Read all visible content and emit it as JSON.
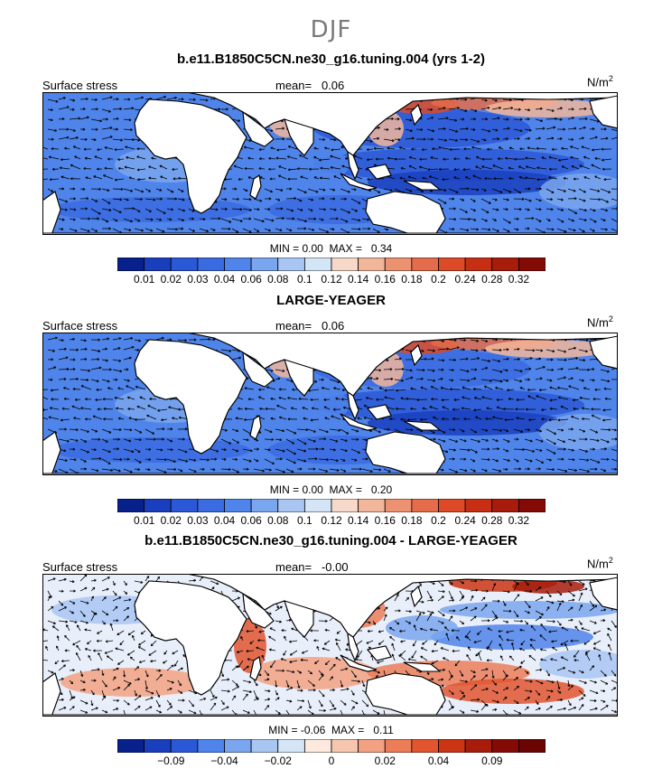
{
  "header": {
    "season": "DJF"
  },
  "panels": [
    {
      "title": "b.e11.B1850C5CN.ne30_g16.tuning.004 (yrs 1-2)",
      "variable": "Surface stress",
      "mean_label": "mean=",
      "mean_value": "0.06",
      "units": "N/m",
      "units_exp": "2",
      "min_label": "MIN =",
      "min_value": "0.00",
      "max_label": "MAX =",
      "max_value": "0.34",
      "palette": "abs",
      "colorbar_labels": [
        "0.01",
        "0.02",
        "0.03",
        "0.04",
        "0.06",
        "0.08",
        "0.1",
        "0.12",
        "0.14",
        "0.16",
        "0.18",
        "0.2",
        "0.24",
        "0.28",
        "0.32"
      ]
    },
    {
      "title": "LARGE-YEAGER",
      "variable": "Surface stress",
      "mean_label": "mean=",
      "mean_value": "0.06",
      "units": "N/m",
      "units_exp": "2",
      "min_label": "MIN =",
      "min_value": "0.00",
      "max_label": "MAX =",
      "max_value": "0.20",
      "palette": "abs",
      "colorbar_labels": [
        "0.01",
        "0.02",
        "0.03",
        "0.04",
        "0.06",
        "0.08",
        "0.1",
        "0.12",
        "0.14",
        "0.16",
        "0.18",
        "0.2",
        "0.24",
        "0.28",
        "0.32"
      ]
    },
    {
      "title": "b.e11.B1850C5CN.ne30_g16.tuning.004 - LARGE-YEAGER",
      "variable": "Surface stress",
      "mean_label": "mean=",
      "mean_value": "-0.00",
      "units": "N/m",
      "units_exp": "2",
      "min_label": "MIN =",
      "min_value": "-0.06",
      "max_label": "MAX =",
      "max_value": "0.11",
      "palette": "diff",
      "colorbar_labels": [
        "-0.09",
        "-0.04",
        "-0.02",
        "0",
        "0.02",
        "0.04",
        "0.09"
      ]
    }
  ],
  "palettes": {
    "abs": [
      "#08208c",
      "#1a3fbd",
      "#2b58d6",
      "#3a6be0",
      "#4f84ea",
      "#7aa6ef",
      "#a9c6f3",
      "#d4e5f8",
      "#f6d9c9",
      "#f2b69b",
      "#ec9270",
      "#e46c4a",
      "#dc4a28",
      "#c62f14",
      "#a81c0c",
      "#840b05"
    ],
    "diff": [
      "#08208c",
      "#1a3fbd",
      "#2b58d6",
      "#4f84ea",
      "#7aa6ef",
      "#a9c6f3",
      "#d4e5f8",
      "#fde9dd",
      "#f6c7ae",
      "#f2a283",
      "#ec7d58",
      "#e2552f",
      "#cc3514",
      "#a81c0c",
      "#840b05",
      "#6a0503"
    ]
  }
}
